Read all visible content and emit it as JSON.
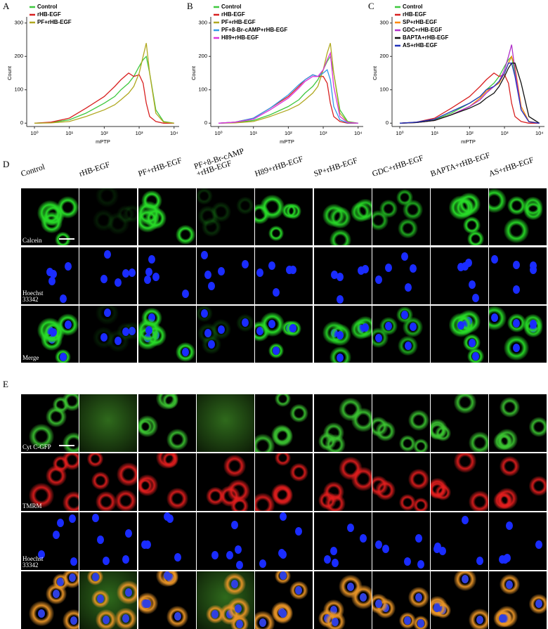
{
  "chart_data": [
    {
      "type": "line",
      "label": "A",
      "ylabel": "Count",
      "xlabel": "mPTP",
      "log_x": true,
      "legend": "upper left",
      "xlim": [
        0.6,
        14000
      ],
      "xticks": [
        {
          "value": 1,
          "label": "10⁰"
        },
        {
          "value": 10,
          "label": "10¹"
        },
        {
          "value": 100,
          "label": "10²"
        },
        {
          "value": 1000,
          "label": "10³"
        },
        {
          "value": 10000,
          "label": "10⁴"
        }
      ],
      "ylim": [
        -10,
        310
      ],
      "yticks": [
        0,
        100,
        200,
        300
      ],
      "x": [
        1,
        3,
        10,
        30,
        100,
        200,
        300,
        500,
        700,
        1000,
        1300,
        1600,
        2000,
        3000,
        5000,
        10000
      ],
      "series": [
        {
          "name": "Control",
          "color": "#3ec83e",
          "values": [
            0,
            2,
            10,
            30,
            60,
            80,
            100,
            120,
            140,
            170,
            190,
            200,
            150,
            40,
            5,
            0
          ]
        },
        {
          "name": "rHB-EGF",
          "color": "#d82020",
          "values": [
            0,
            3,
            15,
            45,
            80,
            110,
            130,
            150,
            140,
            145,
            120,
            60,
            20,
            5,
            0,
            0
          ]
        },
        {
          "name": "PF+rHB-EGF",
          "color": "#b0a820",
          "values": [
            0,
            1,
            5,
            20,
            40,
            55,
            70,
            90,
            110,
            150,
            200,
            240,
            150,
            30,
            3,
            0
          ]
        }
      ]
    },
    {
      "type": "line",
      "label": "B",
      "ylabel": "Count",
      "xlabel": "mPTP",
      "log_x": true,
      "legend": "upper left",
      "xlim": [
        0.6,
        14000
      ],
      "xticks": [
        {
          "value": 1,
          "label": "10⁰"
        },
        {
          "value": 10,
          "label": "10¹"
        },
        {
          "value": 100,
          "label": "10²"
        },
        {
          "value": 1000,
          "label": "10³"
        },
        {
          "value": 10000,
          "label": "10⁴"
        }
      ],
      "ylim": [
        -10,
        310
      ],
      "yticks": [
        0,
        100,
        200,
        300
      ],
      "x": [
        1,
        3,
        10,
        30,
        100,
        200,
        300,
        500,
        700,
        1000,
        1300,
        1600,
        2000,
        3000,
        5000,
        10000
      ],
      "series": [
        {
          "name": "Control",
          "color": "#3ec83e",
          "values": [
            0,
            2,
            8,
            25,
            50,
            70,
            90,
            110,
            130,
            160,
            185,
            200,
            150,
            40,
            5,
            0
          ]
        },
        {
          "name": "rHB-EGF",
          "color": "#d82020",
          "values": [
            0,
            3,
            15,
            45,
            80,
            110,
            130,
            145,
            140,
            140,
            120,
            60,
            20,
            5,
            0,
            0
          ]
        },
        {
          "name": "PF+rHB-EGF",
          "color": "#b0a820",
          "values": [
            0,
            1,
            5,
            20,
            40,
            55,
            70,
            90,
            110,
            160,
            210,
            240,
            150,
            30,
            3,
            0
          ]
        },
        {
          "name": "PF+8-Br-cAMP+rHB-EGF",
          "color": "#3399e6",
          "values": [
            0,
            3,
            15,
            45,
            85,
            115,
            130,
            145,
            140,
            150,
            160,
            130,
            50,
            10,
            1,
            0
          ]
        },
        {
          "name": "H89+rHB-EGF",
          "color": "#dd33dd",
          "values": [
            0,
            3,
            12,
            40,
            75,
            105,
            125,
            140,
            140,
            160,
            190,
            210,
            110,
            20,
            2,
            0
          ]
        }
      ]
    },
    {
      "type": "line",
      "label": "C",
      "ylabel": "Count",
      "xlabel": "mPTP",
      "log_x": true,
      "legend": "upper left",
      "xlim": [
        0.6,
        14000
      ],
      "xticks": [
        {
          "value": 1,
          "label": "10⁰"
        },
        {
          "value": 10,
          "label": "10¹"
        },
        {
          "value": 100,
          "label": "10²"
        },
        {
          "value": 1000,
          "label": "10³"
        },
        {
          "value": 10000,
          "label": "10⁴"
        }
      ],
      "ylim": [
        -10,
        310
      ],
      "yticks": [
        0,
        100,
        200,
        300
      ],
      "x": [
        1,
        3,
        10,
        30,
        100,
        200,
        300,
        500,
        700,
        1000,
        1300,
        1600,
        2000,
        3000,
        5000,
        10000
      ],
      "series": [
        {
          "name": "Control",
          "color": "#3ec83e",
          "values": [
            0,
            2,
            10,
            30,
            60,
            80,
            100,
            120,
            140,
            170,
            190,
            200,
            150,
            40,
            5,
            0
          ]
        },
        {
          "name": "rHB-EGF",
          "color": "#d82020",
          "values": [
            0,
            3,
            15,
            45,
            80,
            110,
            130,
            150,
            140,
            145,
            120,
            60,
            20,
            5,
            0,
            0
          ]
        },
        {
          "name": "SP+rHB-EGF",
          "color": "#ff8800",
          "values": [
            0,
            2,
            8,
            25,
            50,
            75,
            95,
            110,
            120,
            150,
            180,
            200,
            170,
            50,
            5,
            0
          ]
        },
        {
          "name": "GDC+rHB-EGF",
          "color": "#b030c8",
          "values": [
            0,
            2,
            8,
            25,
            50,
            70,
            90,
            110,
            125,
            160,
            200,
            235,
            160,
            40,
            4,
            0
          ]
        },
        {
          "name": "BAPTA+rHB-EGF",
          "color": "#111111",
          "values": [
            0,
            2,
            8,
            25,
            45,
            60,
            75,
            90,
            110,
            140,
            165,
            180,
            180,
            120,
            20,
            0
          ]
        },
        {
          "name": "AS+rHB-EGF",
          "color": "#2233bb",
          "values": [
            0,
            3,
            12,
            35,
            60,
            80,
            100,
            110,
            125,
            150,
            180,
            180,
            140,
            40,
            4,
            0
          ]
        }
      ]
    }
  ],
  "microscopy": {
    "columns": [
      "Control",
      "rHB-EGF",
      "PF+rHB-EGF",
      "PF+8-Br-cAMP\n+rHB-EGF",
      "H89+rHB-EGF",
      "SP+rHB-EGF",
      "GDC+rHB-EGF",
      "BAPTA+rHB-EGF",
      "AS+rHB-EGF"
    ],
    "panels": [
      {
        "label": "D",
        "rows": [
          "Calcein",
          "Hoechst\n33342",
          "Merge"
        ]
      },
      {
        "label": "E",
        "rows": [
          "Cyt C-GFP",
          "TMRM",
          "Hoechst\n33342",
          null
        ]
      }
    ]
  }
}
